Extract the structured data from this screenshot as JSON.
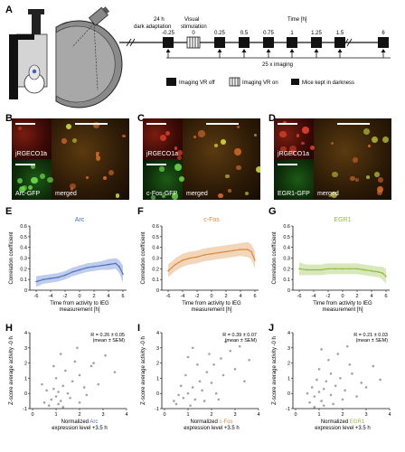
{
  "panel_labels": [
    "A",
    "B",
    "C",
    "D",
    "E",
    "F",
    "G",
    "H",
    "I",
    "J"
  ],
  "panel_a": {
    "label_24h": "24 h",
    "label_dark": "dark adaptation",
    "label_visual": "Visual",
    "label_stim": "stimulation",
    "label_time": "Time [h]",
    "time_points": [
      "-0.25",
      "0",
      "0.25",
      "0.5",
      "0.75",
      "1",
      "1.25",
      "1.5",
      "6"
    ],
    "imaging_count": "25 x imaging",
    "legend": {
      "vr_off": "Imaging VR off",
      "vr_on": "Imaging VR on",
      "dark": "Mice kept in darkness"
    }
  },
  "micro_panels": [
    {
      "id": "B",
      "top_label": "jRGECO1a",
      "bottom_label": "Arc-GFP",
      "merged_label": "merged"
    },
    {
      "id": "C",
      "top_label": "jRGECO1a",
      "bottom_label": "c-Fos-GFP",
      "merged_label": "merged"
    },
    {
      "id": "D",
      "top_label": "jRGECO1a",
      "bottom_label": "EGR1-GFP",
      "merged_label": "merged"
    }
  ],
  "line_panels": {
    "ylabel": "Correlation coefficient",
    "xlabel_1": "Time from activity to IEG",
    "xlabel_2": "measurement [h]",
    "xticks": [
      "-6",
      "-4",
      "-2",
      "0",
      "2",
      "4",
      "6"
    ],
    "yticks": [
      "0",
      "0.1",
      "0.2",
      "0.3",
      "0.4",
      "0.5",
      "0.6"
    ]
  },
  "scatter_panels": {
    "ylabel": "Z-score average activity -0 h",
    "xlabel_prefix": "Normalized ",
    "xlabel_2": "expression level +3.5 h",
    "xticks": [
      "0",
      "1",
      "2",
      "3",
      "4"
    ],
    "yticks": [
      "-1",
      "0",
      "1",
      "2",
      "3",
      "4"
    ],
    "stats_line2": "(mean ± SEM)"
  },
  "chart_data": [
    {
      "type": "line",
      "panel": "E",
      "title": "Arc",
      "xlabel": "Time from activity to IEG measurement [h]",
      "ylabel": "Correlation coefficient",
      "xlim": [
        -6.5,
        6.5
      ],
      "ylim": [
        0,
        0.6
      ],
      "color": "#4a6fc2",
      "series": [
        {
          "x": [
            -6,
            -5,
            -4,
            -3,
            -2,
            -1,
            0,
            1,
            2,
            3,
            4,
            5,
            5.5,
            6
          ],
          "y": [
            0.08,
            0.1,
            0.11,
            0.12,
            0.14,
            0.17,
            0.19,
            0.21,
            0.22,
            0.23,
            0.24,
            0.25,
            0.22,
            0.15
          ],
          "sem": [
            0.05,
            0.04,
            0.04,
            0.04,
            0.04,
            0.04,
            0.04,
            0.04,
            0.04,
            0.04,
            0.05,
            0.05,
            0.06,
            0.08
          ]
        }
      ]
    },
    {
      "type": "line",
      "panel": "F",
      "title": "c-Fos",
      "xlabel": "Time from activity to IEG measurement [h]",
      "ylabel": "Correlation coefficient",
      "xlim": [
        -6.5,
        6.5
      ],
      "ylim": [
        0,
        0.6
      ],
      "color": "#d9893a",
      "series": [
        {
          "x": [
            -6,
            -5,
            -4,
            -3,
            -2,
            -1,
            0,
            1,
            2,
            3,
            4,
            5,
            5.5,
            6
          ],
          "y": [
            0.18,
            0.24,
            0.28,
            0.3,
            0.31,
            0.33,
            0.34,
            0.35,
            0.36,
            0.37,
            0.38,
            0.38,
            0.36,
            0.28
          ],
          "sem": [
            0.06,
            0.06,
            0.06,
            0.06,
            0.06,
            0.06,
            0.06,
            0.06,
            0.06,
            0.06,
            0.06,
            0.07,
            0.07,
            0.08
          ]
        }
      ]
    },
    {
      "type": "line",
      "panel": "G",
      "title": "EGR1",
      "xlabel": "Time from activity to IEG measurement [h]",
      "ylabel": "Correlation coefficient",
      "xlim": [
        -6.5,
        6.5
      ],
      "ylim": [
        0,
        0.6
      ],
      "color": "#8fbc3a",
      "series": [
        {
          "x": [
            -6,
            -5,
            -4,
            -3,
            -2,
            -1,
            0,
            1,
            2,
            3,
            4,
            5,
            5.5,
            6
          ],
          "y": [
            0.2,
            0.19,
            0.19,
            0.19,
            0.2,
            0.2,
            0.2,
            0.2,
            0.2,
            0.19,
            0.18,
            0.17,
            0.16,
            0.13
          ],
          "sem": [
            0.06,
            0.05,
            0.05,
            0.05,
            0.05,
            0.05,
            0.05,
            0.05,
            0.05,
            0.05,
            0.05,
            0.05,
            0.06,
            0.07
          ]
        }
      ]
    },
    {
      "type": "scatter",
      "panel": "H",
      "xlabel": "Normalized Arc expression level +3.5 h",
      "xlabel_gene": "Arc",
      "gene_color": "#4a6fc2",
      "ylabel": "Z-score average activity -0 h",
      "xlim": [
        0,
        4
      ],
      "ylim": [
        -1,
        4
      ],
      "stats": "R = 0.26 ± 0.05",
      "points": [
        [
          0.5,
          -0.6
        ],
        [
          0.8,
          -0.4
        ],
        [
          1.0,
          -0.2
        ],
        [
          1.1,
          0.1
        ],
        [
          1.2,
          -0.5
        ],
        [
          0.9,
          0.3
        ],
        [
          1.3,
          0.5
        ],
        [
          1.5,
          0.0
        ],
        [
          1.7,
          0.8
        ],
        [
          2.0,
          1.2
        ],
        [
          2.2,
          0.4
        ],
        [
          2.5,
          1.8
        ],
        [
          3.1,
          2.5
        ],
        [
          0.6,
          0.2
        ],
        [
          1.0,
          1.0
        ],
        [
          1.4,
          1.5
        ],
        [
          1.8,
          2.1
        ],
        [
          0.7,
          -0.8
        ],
        [
          1.1,
          -0.7
        ],
        [
          1.6,
          -0.3
        ],
        [
          2.3,
          -0.1
        ],
        [
          2.8,
          0.6
        ],
        [
          1.2,
          2.6
        ],
        [
          0.9,
          1.8
        ],
        [
          1.9,
          3.0
        ],
        [
          2.6,
          2.0
        ],
        [
          0.4,
          0.6
        ],
        [
          1.3,
          -0.9
        ],
        [
          2.0,
          -0.6
        ],
        [
          3.5,
          1.4
        ]
      ]
    },
    {
      "type": "scatter",
      "panel": "I",
      "xlabel": "Normalized c-Fos expression level +3.5 h",
      "xlabel_gene": "c-Fos",
      "gene_color": "#d9893a",
      "ylabel": "Z-score average activity -0 h",
      "xlim": [
        0,
        4
      ],
      "ylim": [
        -1,
        4
      ],
      "stats": "R = 0.39 ± 0.07",
      "points": [
        [
          0.5,
          -0.7
        ],
        [
          0.8,
          -0.3
        ],
        [
          1.0,
          0.0
        ],
        [
          1.2,
          0.4
        ],
        [
          1.5,
          0.8
        ],
        [
          1.8,
          1.4
        ],
        [
          2.1,
          1.9
        ],
        [
          2.4,
          2.3
        ],
        [
          2.8,
          2.8
        ],
        [
          3.2,
          3.1
        ],
        [
          0.7,
          0.5
        ],
        [
          1.3,
          -0.4
        ],
        [
          1.6,
          0.2
        ],
        [
          2.0,
          0.7
        ],
        [
          2.5,
          1.2
        ],
        [
          0.9,
          1.2
        ],
        [
          1.1,
          -0.8
        ],
        [
          1.9,
          2.6
        ],
        [
          2.2,
          0.0
        ],
        [
          3.0,
          1.6
        ],
        [
          0.6,
          -0.1
        ],
        [
          1.4,
          1.9
        ],
        [
          1.7,
          -0.5
        ],
        [
          2.6,
          3.4
        ],
        [
          3.6,
          2.2
        ],
        [
          1.0,
          2.4
        ],
        [
          2.3,
          -0.4
        ],
        [
          0.4,
          -0.5
        ],
        [
          1.2,
          3.0
        ],
        [
          3.4,
          0.8
        ]
      ]
    },
    {
      "type": "scatter",
      "panel": "J",
      "xlabel": "Normalized EGR1 expression level +3.5 h",
      "xlabel_gene": "EGR1",
      "gene_color": "#8fbc3a",
      "ylabel": "Z-score average activity -0 h",
      "xlim": [
        0,
        4
      ],
      "ylim": [
        -1,
        4
      ],
      "stats": "R = 0.21 ± 0.03",
      "points": [
        [
          0.6,
          -0.6
        ],
        [
          0.8,
          -0.2
        ],
        [
          1.0,
          0.1
        ],
        [
          1.1,
          -0.5
        ],
        [
          1.2,
          0.3
        ],
        [
          1.3,
          0.8
        ],
        [
          1.5,
          -0.1
        ],
        [
          1.7,
          0.5
        ],
        [
          1.9,
          1.0
        ],
        [
          2.1,
          0.2
        ],
        [
          2.4,
          1.3
        ],
        [
          2.8,
          0.7
        ],
        [
          3.3,
          1.8
        ],
        [
          0.9,
          0.9
        ],
        [
          1.0,
          1.6
        ],
        [
          1.4,
          2.2
        ],
        [
          1.6,
          -0.7
        ],
        [
          2.0,
          -0.4
        ],
        [
          0.7,
          0.4
        ],
        [
          1.2,
          -0.8
        ],
        [
          1.8,
          2.6
        ],
        [
          2.3,
          1.9
        ],
        [
          2.6,
          -0.2
        ],
        [
          3.0,
          0.4
        ],
        [
          0.5,
          0.0
        ],
        [
          1.1,
          2.9
        ],
        [
          1.5,
          1.3
        ],
        [
          2.2,
          3.1
        ],
        [
          3.6,
          0.9
        ],
        [
          0.8,
          -0.9
        ]
      ]
    }
  ]
}
